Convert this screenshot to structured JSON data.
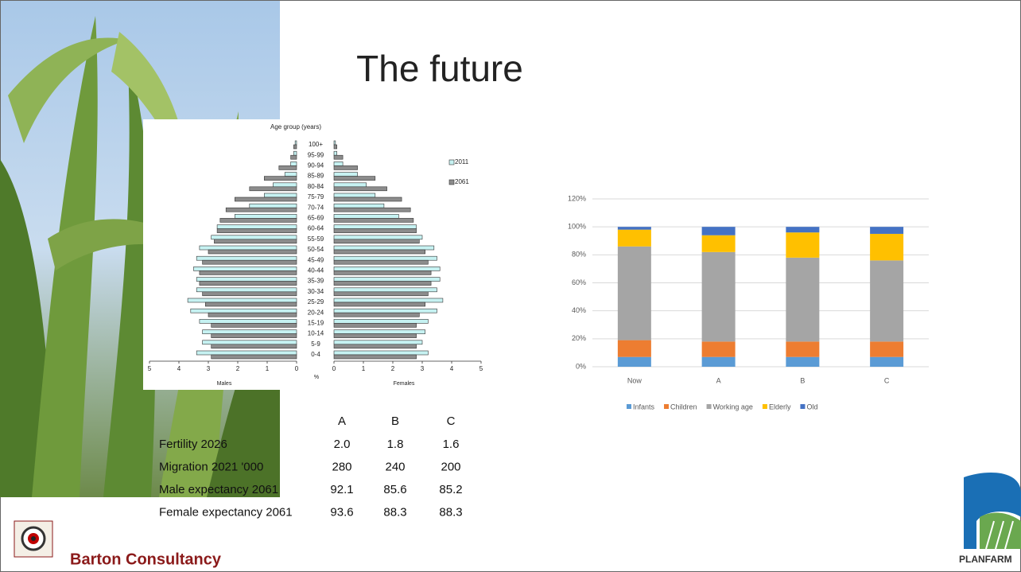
{
  "title": "The future",
  "chart_data": [
    {
      "type": "pyramid",
      "title": "Age group (years)",
      "unit": "%",
      "categories": [
        "100+",
        "95-99",
        "90-94",
        "85-89",
        "80-84",
        "75-79",
        "70-74",
        "65-69",
        "60-64",
        "55-59",
        "50-54",
        "45-49",
        "40-44",
        "35-39",
        "30-34",
        "25-29",
        "20-24",
        "15-19",
        "10-14",
        "5-9",
        "0-4"
      ],
      "left_label": "Males",
      "right_label": "Females",
      "xlim": [
        0,
        5
      ],
      "xticks": [
        0,
        1,
        2,
        3,
        4,
        5
      ],
      "series": [
        {
          "name": "2011",
          "color": "#c6f2f2",
          "males": [
            0.05,
            0.1,
            0.2,
            0.4,
            0.8,
            1.1,
            1.6,
            2.1,
            2.7,
            2.9,
            3.3,
            3.4,
            3.5,
            3.4,
            3.4,
            3.7,
            3.6,
            3.3,
            3.2,
            3.2,
            3.4
          ],
          "females": [
            0.05,
            0.1,
            0.3,
            0.8,
            1.1,
            1.4,
            1.7,
            2.2,
            2.8,
            3.0,
            3.4,
            3.5,
            3.6,
            3.6,
            3.5,
            3.7,
            3.5,
            3.2,
            3.1,
            3.0,
            3.2
          ]
        },
        {
          "name": "2061",
          "color": "#8c8c8c",
          "males": [
            0.1,
            0.2,
            0.6,
            1.1,
            1.6,
            2.1,
            2.4,
            2.6,
            2.7,
            2.8,
            3.0,
            3.2,
            3.3,
            3.3,
            3.2,
            3.1,
            3.0,
            2.9,
            2.9,
            2.9,
            2.9
          ],
          "females": [
            0.1,
            0.3,
            0.8,
            1.4,
            1.8,
            2.3,
            2.6,
            2.7,
            2.8,
            2.9,
            3.1,
            3.2,
            3.3,
            3.3,
            3.2,
            3.1,
            2.9,
            2.8,
            2.8,
            2.8,
            2.8
          ]
        }
      ]
    },
    {
      "type": "stacked_bar",
      "categories": [
        "Now",
        "A",
        "B",
        "C"
      ],
      "ylim": [
        0,
        120
      ],
      "yticks": [
        {
          "value": 0,
          "label": "0%"
        },
        {
          "value": 20,
          "label": "20%"
        },
        {
          "value": 40,
          "label": "40%"
        },
        {
          "value": 60,
          "label": "60%"
        },
        {
          "value": 80,
          "label": "80%"
        },
        {
          "value": 100,
          "label": "100%"
        },
        {
          "value": 120,
          "label": "120%"
        }
      ],
      "grid": true,
      "legend": "bottom",
      "series": [
        {
          "name": "Infants",
          "color": "#5b9bd5",
          "values": [
            7,
            7,
            7,
            7
          ]
        },
        {
          "name": "Children",
          "color": "#ed7d31",
          "values": [
            12,
            11,
            11,
            11
          ]
        },
        {
          "name": "Working age",
          "color": "#a5a5a5",
          "values": [
            67,
            64,
            60,
            58
          ]
        },
        {
          "name": "Elderly",
          "color": "#ffc000",
          "values": [
            12,
            12,
            18,
            19
          ]
        },
        {
          "name": "Old",
          "color": "#4472c4",
          "values": [
            2,
            6,
            4,
            5
          ]
        }
      ]
    }
  ],
  "table": {
    "columns": [
      "A",
      "B",
      "C"
    ],
    "rows": [
      {
        "label": "Fertility 2026",
        "values": [
          "2.0",
          "1.8",
          "1.6"
        ]
      },
      {
        "label": "Migration 2021 '000",
        "values": [
          "280",
          "240",
          "200"
        ]
      },
      {
        "label": "Male expectancy 2061",
        "values": [
          "92.1",
          "85.6",
          "85.2"
        ]
      },
      {
        "label": "Female expectancy 2061",
        "values": [
          "93.6",
          "88.3",
          "88.3"
        ]
      }
    ]
  },
  "footer": {
    "company": "Barton Consultancy",
    "logo_text": "PLANFARM"
  }
}
